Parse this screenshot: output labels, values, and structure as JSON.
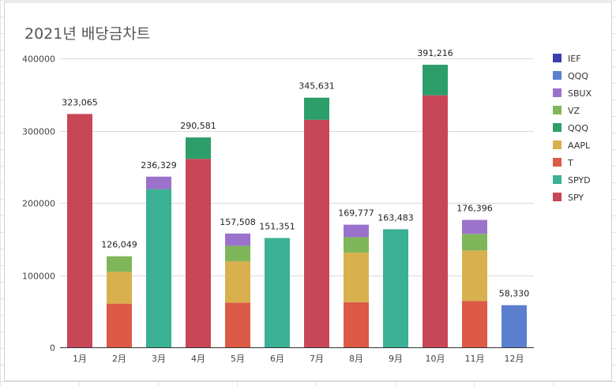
{
  "colors": {
    "IEF": "#3b3eac",
    "QQQ_blue": "#5b7fcf",
    "SBUX": "#9b72cb",
    "VZ": "#7fb65a",
    "QQQ": "#2c9e6a",
    "AAPL": "#d8b04d",
    "T": "#dc5a46",
    "SPYD": "#3ab095",
    "SPY": "#c84757"
  },
  "chart_data": {
    "type": "bar",
    "stacked": true,
    "title": "2021년 배당금차트",
    "categories": [
      "1月",
      "2月",
      "3月",
      "4月",
      "5月",
      "6月",
      "7月",
      "8月",
      "9月",
      "10月",
      "11月",
      "12月"
    ],
    "ylim": [
      0,
      400000
    ],
    "yticks": [
      "0",
      "100000",
      "200000",
      "300000",
      "400000"
    ],
    "ytick_values": [
      0,
      100000,
      200000,
      300000,
      400000
    ],
    "grid": true,
    "legend_position": "right",
    "totals": [
      "323,065",
      "126,049",
      "236,329",
      "290,581",
      "157,508",
      "151,351",
      "345,631",
      "169,777",
      "163,483",
      "391,216",
      "176,396",
      "58,330"
    ],
    "series": [
      {
        "name": "SPY",
        "color_key": "SPY",
        "values": [
          323065,
          0,
          0,
          261000,
          0,
          0,
          315000,
          0,
          0,
          349000,
          0,
          0
        ]
      },
      {
        "name": "SPYD",
        "color_key": "SPYD",
        "values": [
          0,
          0,
          219000,
          0,
          0,
          151351,
          0,
          0,
          163483,
          0,
          0,
          0
        ]
      },
      {
        "name": "T",
        "color_key": "T",
        "values": [
          0,
          60500,
          0,
          0,
          62000,
          0,
          0,
          62500,
          0,
          0,
          64000,
          0
        ]
      },
      {
        "name": "AAPL",
        "color_key": "AAPL",
        "values": [
          0,
          44000,
          0,
          0,
          57000,
          0,
          0,
          68500,
          0,
          0,
          70000,
          0
        ]
      },
      {
        "name": "QQQ",
        "color_key": "QQQ",
        "values": [
          0,
          0,
          0,
          29581,
          0,
          0,
          30631,
          0,
          0,
          42216,
          0,
          0
        ]
      },
      {
        "name": "VZ",
        "color_key": "VZ",
        "values": [
          0,
          21549,
          0,
          0,
          21500,
          0,
          0,
          21500,
          0,
          0,
          23000,
          0
        ]
      },
      {
        "name": "SBUX",
        "color_key": "SBUX",
        "values": [
          0,
          0,
          17329,
          0,
          17008,
          0,
          0,
          17277,
          0,
          0,
          19396,
          0
        ]
      },
      {
        "name": " QQQ",
        "color_key": "QQQ_blue",
        "values": [
          0,
          0,
          0,
          0,
          0,
          0,
          0,
          0,
          0,
          0,
          0,
          58330
        ]
      },
      {
        "name": "IEF",
        "color_key": "IEF",
        "values": [
          0,
          0,
          0,
          0,
          0,
          0,
          0,
          0,
          0,
          0,
          0,
          0
        ]
      }
    ],
    "legend_order": [
      "IEF",
      " QQQ",
      "SBUX",
      "VZ",
      "QQQ",
      "AAPL",
      "T",
      "SPYD",
      "SPY"
    ],
    "legend_colors": [
      "IEF",
      "QQQ_blue",
      "SBUX",
      "VZ",
      "QQQ",
      "AAPL",
      "T",
      "SPYD",
      "SPY"
    ]
  }
}
